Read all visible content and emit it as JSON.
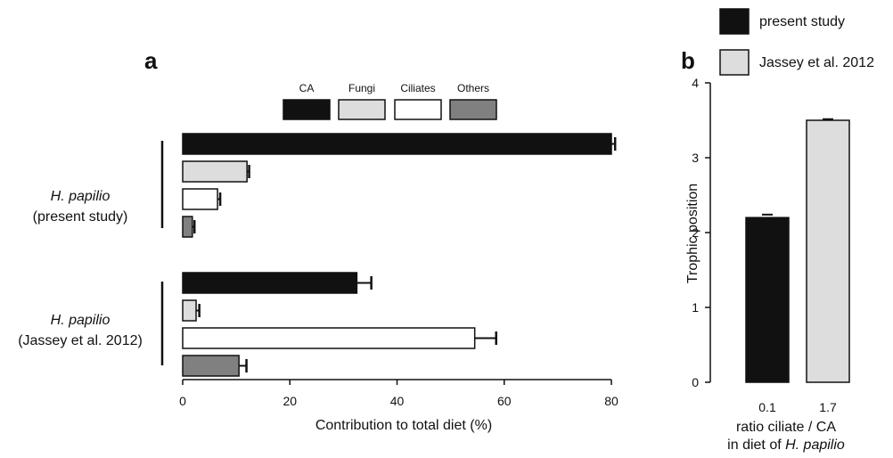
{
  "colors": {
    "CA": "#111111",
    "Fungi": "#dddddd",
    "Ciliates": "#ffffff",
    "Others": "#808080",
    "stroke": "#111111"
  },
  "chart_data": [
    {
      "panel": "a",
      "type": "bar",
      "orientation": "horizontal",
      "xlabel": "Contribution to total diet (%)",
      "xlim": [
        0,
        80
      ],
      "xticks": [
        "0",
        "20",
        "40",
        "60",
        "80"
      ],
      "legend": [
        "CA",
        "Fungi",
        "Ciliates",
        "Others"
      ],
      "legend_position": "top",
      "groups": [
        {
          "label_italic": "H. papilio",
          "label_sub": "(present study)",
          "values": [
            80,
            12,
            6.5,
            1.8
          ],
          "errors": [
            0.7,
            0.4,
            0.5,
            0.4
          ]
        },
        {
          "label_italic": "H. papilio",
          "label_sub": "(Jassey et al. 2012)",
          "values": [
            32.5,
            2.5,
            54.5,
            10.5
          ],
          "errors": [
            2.7,
            0.6,
            4.0,
            1.4
          ]
        }
      ]
    },
    {
      "panel": "b",
      "type": "bar",
      "ylabel": "Trophic position",
      "ylim": [
        0,
        4
      ],
      "yticks": [
        "0",
        "1",
        "2",
        "3",
        "4"
      ],
      "categories": [
        "0.1",
        "1.7"
      ],
      "values": [
        2.2,
        3.5
      ],
      "errors": [
        0.04,
        0.015
      ],
      "xlabel_line1": "ratio ciliate / CA",
      "xlabel_line2_prefix": "in diet of ",
      "xlabel_line2_italic": "H. papilio",
      "legend": [
        "present study",
        "Jassey et al. 2012"
      ],
      "legend_position": "top"
    }
  ]
}
